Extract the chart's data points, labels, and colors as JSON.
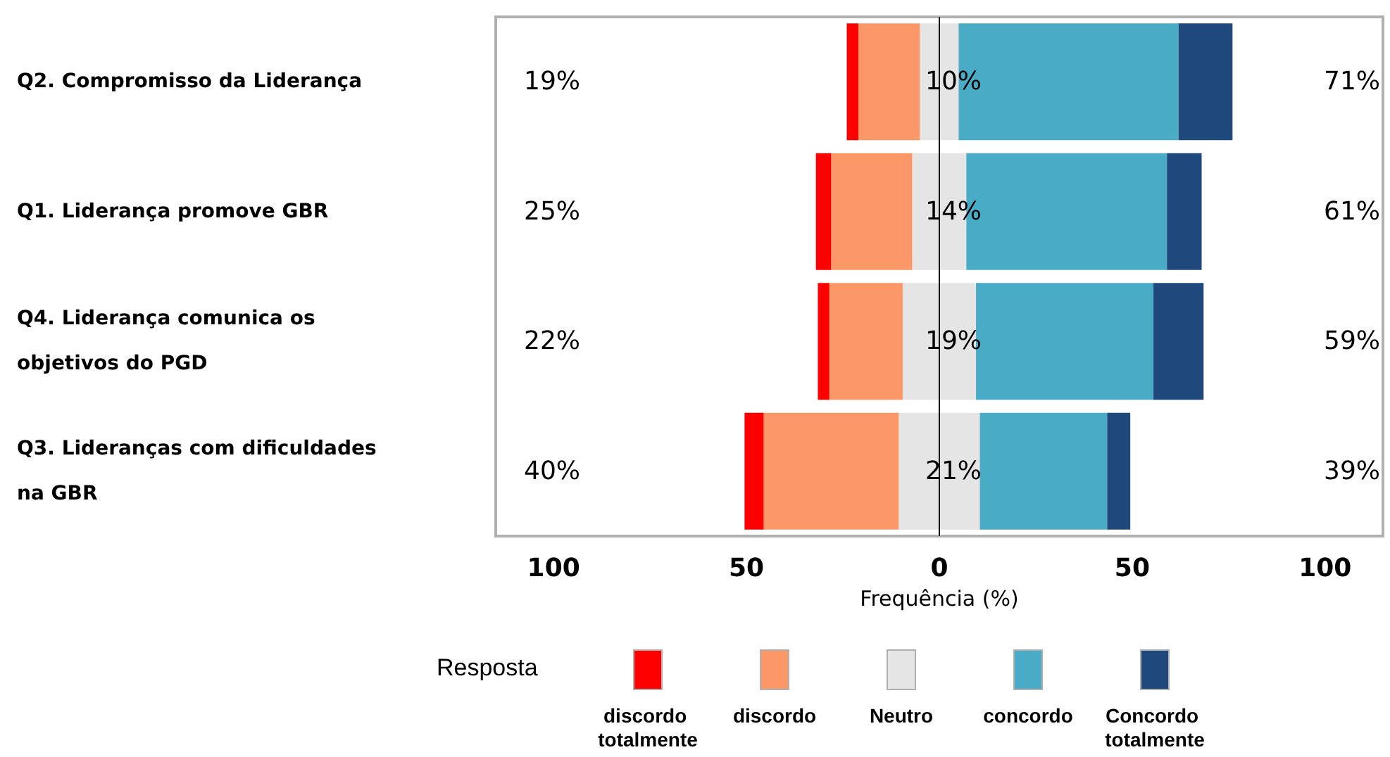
{
  "chart_data": {
    "type": "bar",
    "orientation": "horizontal",
    "categories": [
      "Q2. Compromisso da Liderança",
      "Q1. Liderança promove GBR",
      "Q4. Liderança comunica os objetivos do PGD",
      "Q3. Lideranças com dificuldades na GBR"
    ],
    "series": [
      {
        "name": "discordo totalmente",
        "color": "#ff0000",
        "values": [
          3,
          4,
          3,
          5
        ],
        "base": [
          -24,
          -32,
          -31.5,
          -50.5
        ]
      },
      {
        "name": "discordo",
        "color": "#fc9867",
        "values": [
          16,
          21,
          19,
          35
        ],
        "base": [
          -21,
          -28,
          -28.5,
          -45.5
        ]
      },
      {
        "name": "Neutro",
        "color": "#e5e5e5",
        "values": [
          10,
          14,
          19,
          21
        ],
        "base": [
          -5,
          -7,
          -9.5,
          -10.5
        ],
        "value_labels": [
          "10%",
          "14%",
          "19%",
          "21%"
        ]
      },
      {
        "name": "concordo",
        "color": "#4aabc6",
        "values": [
          57,
          52,
          46,
          33
        ],
        "base": [
          5,
          7,
          9.5,
          10.5
        ]
      },
      {
        "name": "Concordo totalmente",
        "color": "#1f497d",
        "values": [
          14,
          9,
          13,
          6
        ],
        "base": [
          62,
          59,
          55.5,
          43.5
        ]
      }
    ],
    "xlabel": "Frequência (%)",
    "legend_title": "Resposta",
    "legend": "bottom",
    "xlim": [
      -115,
      115
    ],
    "xticks": [
      {
        "value": -100,
        "label": "100"
      },
      {
        "value": -50,
        "label": "50"
      },
      0,
      50,
      100
    ],
    "ref_lines": [
      {
        "axis": "x",
        "value": 0,
        "color": "#000000"
      }
    ],
    "annotations": [
      "19%",
      "71%",
      "25%",
      "61%",
      "22%",
      "59%",
      "40%",
      "39%"
    ],
    "grid": false
  }
}
